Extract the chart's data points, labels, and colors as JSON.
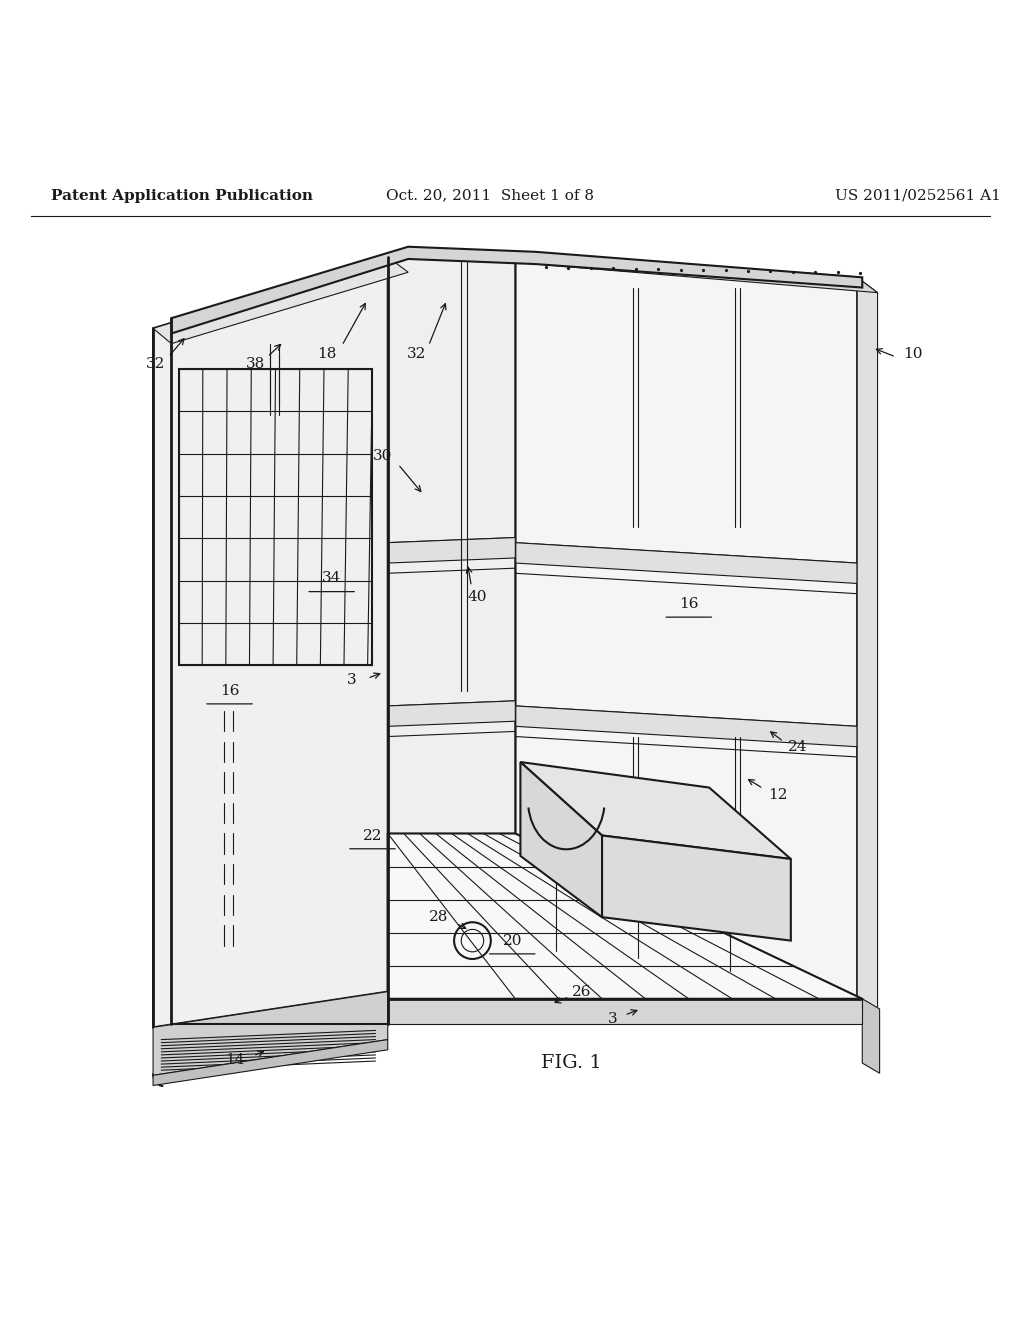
{
  "background_color": "#ffffff",
  "header_left": "Patent Application Publication",
  "header_center": "Oct. 20, 2011  Sheet 1 of 8",
  "header_right": "US 2011/0252561 A1",
  "figure_label": "FIG. 1",
  "line_color": "#1a1a1a",
  "text_color": "#1a1a1a",
  "header_fontsize": 11,
  "label_fontsize": 11,
  "fig_label_fontsize": 14
}
